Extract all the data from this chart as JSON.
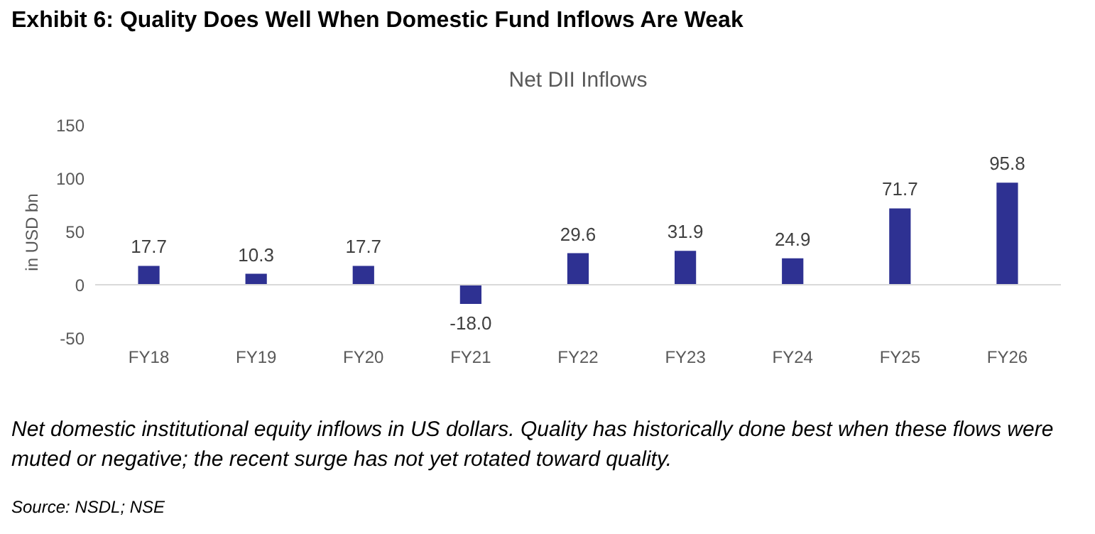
{
  "chart_data": {
    "type": "bar",
    "title": "Net DII Inflows",
    "subtitle": "Exhibit 6: Quality Does Well When Domestic Fund Inflows Are Weak",
    "ylabel": "in USD bn",
    "categories": [
      "FY18",
      "FY19",
      "FY20",
      "FY21",
      "FY22",
      "FY23",
      "FY24",
      "FY25",
      "FY26"
    ],
    "values": [
      17.7,
      10.3,
      17.7,
      -18.0,
      29.6,
      31.9,
      24.9,
      71.7,
      95.8
    ],
    "value_labels": [
      "17.7",
      "10.3",
      "17.7",
      "-18.0",
      "29.6",
      "31.9",
      "24.9",
      "71.7",
      "95.8"
    ],
    "color": "#2e3192",
    "ylim": [
      -50,
      150
    ],
    "yticks": [
      -50,
      0,
      50,
      100,
      150
    ],
    "grid": false,
    "ref_lines": [
      {
        "axis": "y",
        "value": 0,
        "color": "#d9d9d9"
      }
    ],
    "annotations": [
      "Net domestic institutional equity inflows in US dollars. Quality has historically done best when these flows were muted or negative; the recent surge has not yet rotated toward quality.",
      "Source: NSDL; NSE"
    ]
  }
}
